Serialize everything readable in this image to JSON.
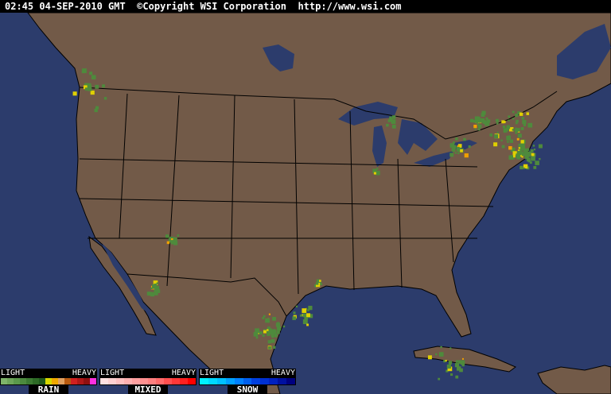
{
  "header": {
    "text": "02:45 04-SEP-2010 GMT  ©Copyright WSI Corporation  http://www.wsi.com"
  },
  "colors": {
    "ocean": "#2c3c6c",
    "land": "#725a48",
    "borders": "#000000",
    "radar_light": "#4e8a3c",
    "radar_moderate": "#e0d000",
    "radar_heavy": "#f0a000"
  },
  "legends": [
    {
      "name": "RAIN",
      "light": "LIGHT",
      "heavy": "HEAVY",
      "colors": [
        "#7fb46a",
        "#6ea55a",
        "#5b984b",
        "#4c8a3e",
        "#3c7a32",
        "#2d6a26",
        "#1f5a1c",
        "#d8d800",
        "#f0a800",
        "#e0a060",
        "#b85a10",
        "#d02020",
        "#b01818",
        "#901010",
        "#ff30e0"
      ]
    },
    {
      "name": "MIXED",
      "light": "LIGHT",
      "heavy": "HEAVY",
      "colors": [
        "#ffe0e0",
        "#ffd0d0",
        "#ffc0c0",
        "#ffb0b0",
        "#ffa0a0",
        "#ff9090",
        "#ff8080",
        "#ff6a6a",
        "#ff5050",
        "#ff3838",
        "#ff2020",
        "#ff0000"
      ]
    },
    {
      "name": "SNOW",
      "light": "LIGHT",
      "heavy": "HEAVY",
      "colors": [
        "#00f0ff",
        "#00d8ff",
        "#00c0ff",
        "#00a0ff",
        "#0080ff",
        "#0060f0",
        "#0040e0",
        "#0030d0",
        "#0020c0",
        "#0010a0",
        "#000080"
      ]
    }
  ]
}
